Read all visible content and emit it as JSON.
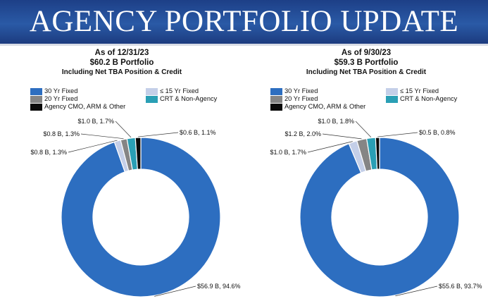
{
  "header": {
    "title": "AGENCY PORTFOLIO UPDATE"
  },
  "colors": {
    "fixed30": "#2d6ec0",
    "fixed15": "#c4cfe8",
    "fixed20": "#858585",
    "crt": "#2a9fb5",
    "cmo": "#0a0a0a"
  },
  "legend": {
    "fixed30": "30 Yr Fixed",
    "fixed15": "≤ 15 Yr Fixed",
    "fixed20": "20 Yr Fixed",
    "crt": "CRT & Non-Agency",
    "cmo": "Agency CMO, ARM & Other"
  },
  "chart_data": [
    {
      "type": "pie",
      "title": "As of 12/31/23",
      "subtitle": "$60.2 B Portfolio",
      "note": "Including Net TBA Position & Credit",
      "slices": [
        {
          "key": "fixed30",
          "name": "30 Yr Fixed",
          "value": 94.6,
          "label": "$56.9 B, 94.6%"
        },
        {
          "key": "fixed15",
          "name": "≤ 15 Yr Fixed",
          "value": 1.3,
          "label": "$0.8 B, 1.3%"
        },
        {
          "key": "fixed20",
          "name": "20 Yr Fixed",
          "value": 1.3,
          "label": "$0.8 B, 1.3%"
        },
        {
          "key": "crt",
          "name": "CRT & Non-Agency",
          "value": 1.7,
          "label": "$1.0 B, 1.7%"
        },
        {
          "key": "cmo",
          "name": "Agency CMO, ARM & Other",
          "value": 1.1,
          "label": "$0.6 B, 1.1%"
        }
      ]
    },
    {
      "type": "pie",
      "title": "As of 9/30/23",
      "subtitle": "$59.3 B Portfolio",
      "note": "Including Net TBA Position & Credit",
      "slices": [
        {
          "key": "fixed30",
          "name": "30 Yr Fixed",
          "value": 93.7,
          "label": "$55.6 B, 93.7%"
        },
        {
          "key": "fixed15",
          "name": "≤ 15 Yr Fixed",
          "value": 1.7,
          "label": "$1.0 B, 1.7%"
        },
        {
          "key": "fixed20",
          "name": "20 Yr Fixed",
          "value": 2.0,
          "label": "$1.2 B, 2.0%"
        },
        {
          "key": "crt",
          "name": "CRT & Non-Agency",
          "value": 1.8,
          "label": "$1.0 B, 1.8%"
        },
        {
          "key": "cmo",
          "name": "Agency CMO, ARM & Other",
          "value": 0.8,
          "label": "$0.5 B, 0.8%"
        }
      ]
    }
  ]
}
